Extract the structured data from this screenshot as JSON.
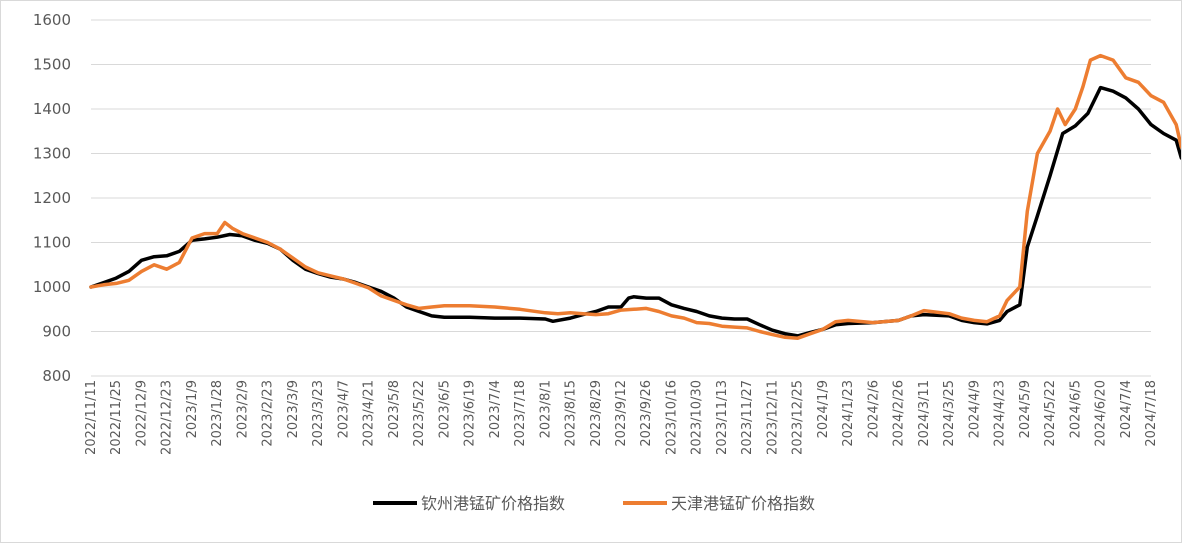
{
  "chart_data": {
    "type": "line",
    "ylim": [
      800,
      1600
    ],
    "yticks": [
      800,
      900,
      1000,
      1100,
      1200,
      1300,
      1400,
      1500,
      1600
    ],
    "grid": true,
    "legend_position": "bottom",
    "x_ticks": [
      "2022/11/11",
      "2022/11/25",
      "2022/12/9",
      "2022/12/23",
      "2023/1/9",
      "2023/1/28",
      "2023/2/9",
      "2023/2/23",
      "2023/3/9",
      "2023/3/23",
      "2023/4/7",
      "2023/4/21",
      "2023/5/8",
      "2023/5/22",
      "2023/6/5",
      "2023/6/19",
      "2023/7/4",
      "2023/7/18",
      "2023/8/1",
      "2023/8/15",
      "2023/8/29",
      "2023/9/12",
      "2023/9/26",
      "2023/10/16",
      "2023/10/30",
      "2023/11/13",
      "2023/11/27",
      "2023/12/11",
      "2023/12/25",
      "2024/1/9",
      "2024/1/23",
      "2024/2/6",
      "2024/2/26",
      "2024/3/11",
      "2024/3/25",
      "2024/4/9",
      "2024/4/23",
      "2024/5/9",
      "2024/5/22",
      "2024/6/5",
      "2024/6/20",
      "2024/7/4",
      "2024/7/18"
    ],
    "series": [
      {
        "name": "钦州港锰矿价格指数",
        "color": "#000000",
        "points": [
          [
            0,
            1000
          ],
          [
            0.5,
            1010
          ],
          [
            1,
            1020
          ],
          [
            1.5,
            1035
          ],
          [
            2,
            1060
          ],
          [
            2.5,
            1068
          ],
          [
            3,
            1070
          ],
          [
            3.5,
            1080
          ],
          [
            4,
            1105
          ],
          [
            4.5,
            1108
          ],
          [
            5,
            1112
          ],
          [
            5.5,
            1118
          ],
          [
            6,
            1115
          ],
          [
            6.5,
            1105
          ],
          [
            7,
            1098
          ],
          [
            7.5,
            1085
          ],
          [
            8,
            1060
          ],
          [
            8.5,
            1040
          ],
          [
            9,
            1030
          ],
          [
            9.5,
            1022
          ],
          [
            10,
            1018
          ],
          [
            10.5,
            1010
          ],
          [
            11,
            1000
          ],
          [
            11.5,
            990
          ],
          [
            12,
            975
          ],
          [
            12.5,
            955
          ],
          [
            13,
            945
          ],
          [
            13.5,
            935
          ],
          [
            14,
            932
          ],
          [
            15,
            932
          ],
          [
            16,
            930
          ],
          [
            17,
            930
          ],
          [
            18,
            928
          ],
          [
            18.3,
            923
          ],
          [
            19,
            930
          ],
          [
            19.5,
            938
          ],
          [
            20,
            945
          ],
          [
            20.5,
            955
          ],
          [
            21,
            955
          ],
          [
            21.3,
            975
          ],
          [
            21.5,
            978
          ],
          [
            22,
            975
          ],
          [
            22.5,
            975
          ],
          [
            23,
            960
          ],
          [
            23.5,
            952
          ],
          [
            24,
            945
          ],
          [
            24.5,
            935
          ],
          [
            25,
            930
          ],
          [
            25.5,
            928
          ],
          [
            26,
            928
          ],
          [
            26.5,
            915
          ],
          [
            27,
            903
          ],
          [
            27.5,
            895
          ],
          [
            28,
            890
          ],
          [
            28.5,
            898
          ],
          [
            29,
            905
          ],
          [
            29.5,
            915
          ],
          [
            30,
            918
          ],
          [
            31,
            920
          ],
          [
            32,
            925
          ],
          [
            32.5,
            935
          ],
          [
            33,
            938
          ],
          [
            34,
            935
          ],
          [
            34.5,
            925
          ],
          [
            35,
            920
          ],
          [
            35.5,
            917
          ],
          [
            36,
            925
          ],
          [
            36.3,
            945
          ],
          [
            36.8,
            960
          ],
          [
            37.1,
            1090
          ],
          [
            37.5,
            1160
          ],
          [
            38,
            1250
          ],
          [
            38.5,
            1345
          ],
          [
            39,
            1362
          ],
          [
            39.5,
            1390
          ],
          [
            40,
            1448
          ],
          [
            40.5,
            1440
          ],
          [
            41,
            1425
          ],
          [
            41.5,
            1400
          ],
          [
            42,
            1365
          ],
          [
            42.5,
            1345
          ],
          [
            43,
            1330
          ],
          [
            43.2,
            1290
          ]
        ]
      },
      {
        "name": "天津港锰矿价格指数",
        "color": "#ED7D31",
        "points": [
          [
            0,
            1000
          ],
          [
            0.5,
            1005
          ],
          [
            1,
            1008
          ],
          [
            1.5,
            1015
          ],
          [
            2,
            1035
          ],
          [
            2.5,
            1050
          ],
          [
            3,
            1040
          ],
          [
            3.5,
            1055
          ],
          [
            4,
            1110
          ],
          [
            4.5,
            1120
          ],
          [
            5,
            1120
          ],
          [
            5.3,
            1145
          ],
          [
            5.6,
            1132
          ],
          [
            6,
            1120
          ],
          [
            6.5,
            1110
          ],
          [
            7,
            1100
          ],
          [
            7.5,
            1085
          ],
          [
            8,
            1065
          ],
          [
            8.5,
            1045
          ],
          [
            9,
            1032
          ],
          [
            9.5,
            1025
          ],
          [
            10,
            1018
          ],
          [
            10.5,
            1008
          ],
          [
            11,
            998
          ],
          [
            11.5,
            980
          ],
          [
            12,
            970
          ],
          [
            12.5,
            960
          ],
          [
            13,
            952
          ],
          [
            13.5,
            955
          ],
          [
            14,
            958
          ],
          [
            15,
            958
          ],
          [
            16,
            955
          ],
          [
            17,
            950
          ],
          [
            18,
            942
          ],
          [
            18.5,
            940
          ],
          [
            19,
            942
          ],
          [
            19.5,
            940
          ],
          [
            20,
            938
          ],
          [
            20.5,
            940
          ],
          [
            21,
            948
          ],
          [
            21.5,
            950
          ],
          [
            22,
            952
          ],
          [
            22.5,
            945
          ],
          [
            23,
            935
          ],
          [
            23.5,
            930
          ],
          [
            24,
            920
          ],
          [
            24.5,
            918
          ],
          [
            25,
            912
          ],
          [
            25.5,
            910
          ],
          [
            26,
            908
          ],
          [
            26.5,
            900
          ],
          [
            27,
            893
          ],
          [
            27.5,
            887
          ],
          [
            28,
            885
          ],
          [
            28.5,
            895
          ],
          [
            29,
            905
          ],
          [
            29.5,
            922
          ],
          [
            30,
            925
          ],
          [
            31,
            920
          ],
          [
            32,
            925
          ],
          [
            32.5,
            935
          ],
          [
            33,
            947
          ],
          [
            34,
            940
          ],
          [
            34.5,
            930
          ],
          [
            35,
            925
          ],
          [
            35.5,
            922
          ],
          [
            36,
            935
          ],
          [
            36.3,
            970
          ],
          [
            36.8,
            1000
          ],
          [
            37.1,
            1170
          ],
          [
            37.5,
            1300
          ],
          [
            38,
            1350
          ],
          [
            38.3,
            1400
          ],
          [
            38.6,
            1365
          ],
          [
            39,
            1400
          ],
          [
            39.3,
            1450
          ],
          [
            39.6,
            1510
          ],
          [
            40,
            1520
          ],
          [
            40.5,
            1510
          ],
          [
            41,
            1470
          ],
          [
            41.5,
            1460
          ],
          [
            42,
            1430
          ],
          [
            42.5,
            1415
          ],
          [
            43,
            1365
          ],
          [
            43.2,
            1315
          ]
        ]
      }
    ]
  }
}
